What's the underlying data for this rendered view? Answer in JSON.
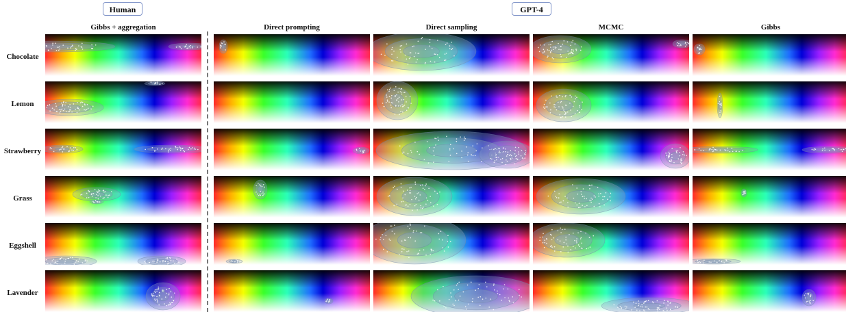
{
  "group_labels": {
    "human": "Human",
    "gpt4": "GPT-4"
  },
  "columns": [
    "Gibbs + aggregation",
    "Direct prompting",
    "Direct sampling",
    "MCMC",
    "Gibbs"
  ],
  "rows": [
    "Chocolate",
    "Lemon",
    "Strawberry",
    "Grass",
    "Eggshell",
    "Lavender"
  ],
  "colors": {
    "group_border": "#7f93c8",
    "divider": "#777777",
    "density_fill": "#8aa0c0",
    "sample_point": "#ffffff"
  }
}
